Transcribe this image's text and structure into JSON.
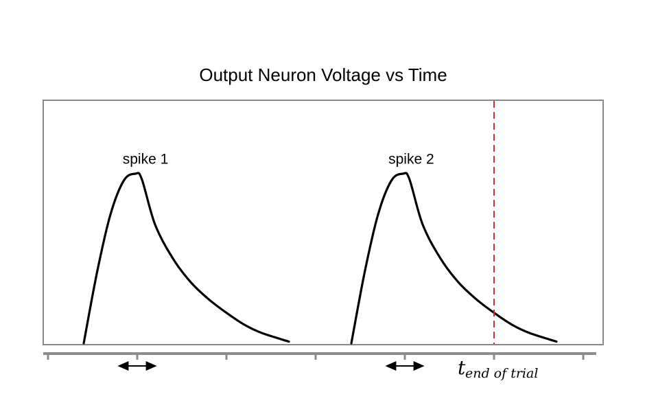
{
  "chart_data": {
    "type": "line",
    "title": "Output Neuron Voltage vs Time",
    "xlabel": "",
    "ylabel": "",
    "grid": false,
    "xlim": [
      0,
      6.25
    ],
    "ylim": [
      0,
      1
    ],
    "x_ticks": [
      0,
      1,
      2,
      3,
      4,
      5,
      6
    ],
    "series": [
      {
        "x": [
          0.4,
          0.55,
          0.7,
          0.85,
          0.98,
          1.05,
          1.2,
          1.4,
          1.6,
          1.8,
          2.0,
          2.2,
          2.4,
          2.7
        ],
        "y": [
          0.0,
          0.42,
          0.76,
          0.96,
          1.0,
          0.97,
          0.7,
          0.5,
          0.36,
          0.26,
          0.18,
          0.11,
          0.06,
          0.01
        ]
      },
      {
        "x": [
          3.4,
          3.55,
          3.7,
          3.85,
          3.98,
          4.05,
          4.2,
          4.4,
          4.6,
          4.8,
          5.0,
          5.2,
          5.4,
          5.7
        ],
        "y": [
          0.0,
          0.42,
          0.76,
          0.96,
          1.0,
          0.97,
          0.7,
          0.5,
          0.36,
          0.26,
          0.18,
          0.11,
          0.06,
          0.01
        ]
      }
    ],
    "reference_line": {
      "x": 5.0,
      "color": "#d62728",
      "style": "dashed"
    },
    "annotations": [
      {
        "text": "spike 1",
        "x": 1.0,
        "y": 1.05
      },
      {
        "text": "spike 2",
        "x": 3.98,
        "y": 1.05
      }
    ],
    "double_arrows": [
      {
        "center": 1.0,
        "half_width": 0.22
      },
      {
        "center": 4.0,
        "half_width": 0.22
      }
    ],
    "tend_label": {
      "main": "t",
      "sub": "end of trial",
      "x": 5.0
    },
    "colors": {
      "curve": "#000000",
      "frame": "#888888",
      "axis": "#8c8c8c",
      "tend_line": "#d62728"
    }
  }
}
